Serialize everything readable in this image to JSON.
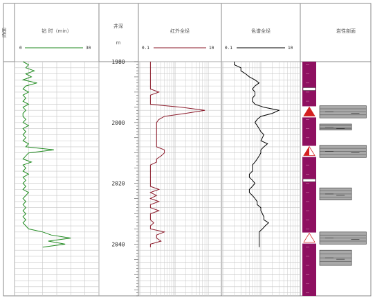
{
  "header": {
    "layer": "层位",
    "time_track": "钻 时（min）",
    "depth_track": "井深",
    "depth_unit": "m",
    "rt_track": "红外全烃",
    "tg_track": "色谱全烃",
    "lith_track": "岩性剖面"
  },
  "scales": {
    "time": {
      "min": "0",
      "max": "30"
    },
    "rt": {
      "min": "0.1",
      "max": "10"
    },
    "tg": {
      "min": "0.1",
      "max": "10"
    }
  },
  "colors": {
    "time_curve": "#1f8a1f",
    "rt_curve": "#8b1a2a",
    "tg_curve": "#000000",
    "lith_column": "#8e1060",
    "oil_show_triangle": "#d42020",
    "grid": "#c8c8c8"
  },
  "chart_data": [
    {
      "type": "line",
      "title": "钻时",
      "unit": "min",
      "xlim": [
        0,
        30
      ],
      "depth_range": [
        1980,
        2042
      ],
      "x": [
        3,
        5,
        4,
        7,
        4,
        6,
        3,
        8,
        4,
        3,
        5,
        3,
        4,
        3,
        5,
        3,
        4,
        3,
        3,
        4,
        3,
        5,
        3,
        4,
        3,
        4,
        3,
        5,
        4,
        14,
        5,
        4,
        3,
        6,
        3,
        4,
        3,
        5,
        3,
        4,
        3,
        4,
        3,
        5,
        4,
        3,
        4,
        3,
        4,
        3,
        4,
        3,
        4,
        3,
        4,
        5,
        10,
        13,
        20,
        12,
        18,
        10
      ],
      "y": [
        1980,
        1981,
        1982,
        1983,
        1984,
        1985,
        1986,
        1987,
        1988,
        1989,
        1990,
        1991,
        1992,
        1993,
        1994,
        1995,
        1996,
        1997,
        1998,
        1999,
        2000,
        2001,
        2002,
        2003,
        2004,
        2005,
        2006,
        2007,
        2008,
        2009,
        2010,
        2011,
        2012,
        2013,
        2014,
        2015,
        2016,
        2017,
        2018,
        2019,
        2020,
        2021,
        2022,
        2023,
        2024,
        2025,
        2026,
        2027,
        2028,
        2029,
        2030,
        2031,
        2032,
        2033,
        2034,
        2035,
        2036,
        2037,
        2038,
        2039,
        2040,
        2041
      ]
    },
    {
      "type": "line",
      "title": "红外全烃",
      "scale": "log",
      "xlim": [
        0.1,
        10
      ],
      "depth_range": [
        1980,
        2042
      ],
      "x": [
        0.2,
        0.2,
        0.2,
        0.2,
        0.2,
        0.2,
        0.2,
        0.2,
        0.2,
        0.2,
        0.35,
        0.2,
        0.2,
        0.2,
        0.2,
        1.5,
        7,
        2,
        0.5,
        0.35,
        0.3,
        0.3,
        0.3,
        0.3,
        0.3,
        0.3,
        0.3,
        0.3,
        0.3,
        0.5,
        0.5,
        0.4,
        0.3,
        0.3,
        0.2,
        0.2,
        0.2,
        0.2,
        0.2,
        0.2,
        0.2,
        0.2,
        0.35,
        0.2,
        0.3,
        0.2,
        0.35,
        0.2,
        0.2,
        0.35,
        0.2,
        0.2,
        0.2,
        0.25,
        0.2,
        0.2,
        0.5,
        0.3,
        0.3,
        0.4,
        0.2,
        0.2
      ],
      "y": [
        1980,
        1981,
        1982,
        1983,
        1984,
        1985,
        1986,
        1987,
        1988,
        1989,
        1990,
        1991,
        1992,
        1993,
        1994,
        1995,
        1996,
        1997,
        1998,
        1999,
        2000,
        2001,
        2002,
        2003,
        2004,
        2005,
        2006,
        2007,
        2008,
        2009,
        2010,
        2011,
        2012,
        2013,
        2014,
        2015,
        2016,
        2017,
        2018,
        2019,
        2020,
        2021,
        2022,
        2023,
        2024,
        2025,
        2026,
        2027,
        2028,
        2029,
        2030,
        2031,
        2032,
        2033,
        2034,
        2035,
        2036,
        2037,
        2038,
        2039,
        2040,
        2041
      ]
    },
    {
      "type": "line",
      "title": "色谱全烃",
      "scale": "log",
      "xlim": [
        0.1,
        10
      ],
      "depth_range": [
        1980,
        2042
      ],
      "x": [
        0.2,
        0.2,
        0.3,
        0.3,
        0.4,
        0.5,
        0.7,
        0.9,
        0.7,
        0.6,
        0.7,
        0.7,
        0.6,
        0.6,
        0.7,
        1.2,
        3,
        2,
        1,
        0.8,
        0.7,
        0.8,
        0.9,
        1,
        1.2,
        1.1,
        1,
        1.5,
        1.2,
        1,
        1,
        0.9,
        0.8,
        0.7,
        0.6,
        0.6,
        0.6,
        0.5,
        0.5,
        0.6,
        0.7,
        0.6,
        0.5,
        0.5,
        0.6,
        0.7,
        0.8,
        0.8,
        1,
        1,
        1.1,
        1.2,
        1.2,
        1.6,
        1.3,
        1.1,
        0.9,
        0.9,
        0.9,
        0.9,
        0.9,
        0.9
      ],
      "y": [
        1980,
        1981,
        1982,
        1983,
        1984,
        1985,
        1986,
        1987,
        1988,
        1989,
        1990,
        1991,
        1992,
        1993,
        1994,
        1995,
        1996,
        1997,
        1998,
        1999,
        2000,
        2001,
        2002,
        2003,
        2004,
        2005,
        2006,
        2007,
        2008,
        2009,
        2010,
        2011,
        2012,
        2013,
        2014,
        2015,
        2016,
        2017,
        2018,
        2019,
        2020,
        2021,
        2022,
        2023,
        2024,
        2025,
        2026,
        2027,
        2028,
        2029,
        2030,
        2031,
        2032,
        2033,
        2034,
        2035,
        2036,
        2037,
        2038,
        2039,
        2040,
        2041
      ]
    }
  ],
  "depth_labels": [
    "1980",
    "2000",
    "2020",
    "2040"
  ],
  "depth_axis": {
    "min": 1980,
    "max": 2057
  },
  "lithology": {
    "column_range": [
      1980,
      2057
    ],
    "marks": [
      1989,
      2019
    ],
    "beds": [
      {
        "top": 1994.5,
        "bottom": 1998.5,
        "width": 0.95,
        "show": "oil"
      },
      {
        "top": 2000.5,
        "bottom": 2002.5,
        "width": 0.65,
        "show": null
      },
      {
        "top": 2007.5,
        "bottom": 2011.5,
        "width": 0.95,
        "show": "oil-water"
      },
      {
        "top": 2021.5,
        "bottom": 2025.5,
        "width": 0.65,
        "show": null
      },
      {
        "top": 2036,
        "bottom": 2040,
        "width": 0.95,
        "show": "water"
      },
      {
        "top": 2042,
        "bottom": 2047,
        "width": 0.65,
        "show": null
      }
    ]
  }
}
